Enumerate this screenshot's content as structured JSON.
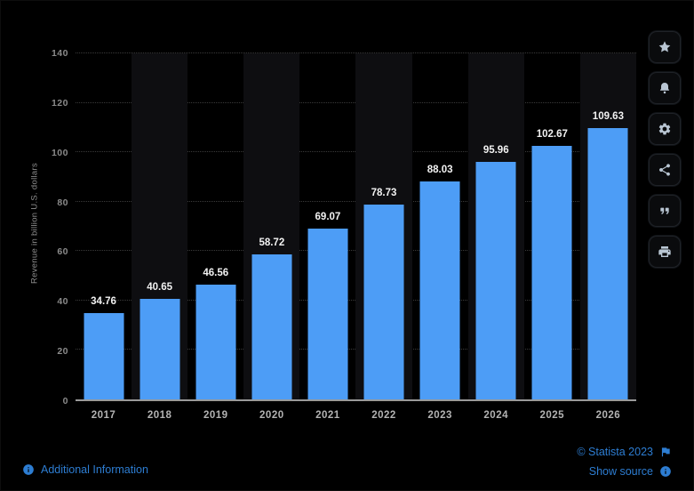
{
  "chart_data": {
    "type": "bar",
    "categories": [
      "2017",
      "2018",
      "2019",
      "2020",
      "2021",
      "2022",
      "2023",
      "2024",
      "2025",
      "2026"
    ],
    "values": [
      34.76,
      40.65,
      46.56,
      58.72,
      69.07,
      78.73,
      88.03,
      95.96,
      102.67,
      109.63
    ],
    "title": "",
    "xlabel": "",
    "ylabel": "Revenue in billion U.S. dollars",
    "ylim": [
      0,
      140
    ],
    "yticks": [
      0,
      20,
      40,
      60,
      80,
      100,
      120,
      140
    ],
    "grid": true,
    "legend": false,
    "bar_color": "#4d9df6",
    "value_label_color": "#f2f2f2",
    "background": "#000000"
  },
  "toolbar": {
    "items": [
      {
        "name": "favorite",
        "icon": "star-icon"
      },
      {
        "name": "notifications",
        "icon": "bell-icon"
      },
      {
        "name": "settings",
        "icon": "gear-icon"
      },
      {
        "name": "share",
        "icon": "share-icon"
      },
      {
        "name": "cite",
        "icon": "quote-icon"
      },
      {
        "name": "print",
        "icon": "printer-icon"
      }
    ]
  },
  "footer": {
    "additional_info_label": "Additional Information",
    "copyright_label": "© Statista 2023",
    "show_source_label": "Show source"
  },
  "colors": {
    "accent_blue": "#2d7dd2",
    "bar_blue": "#4d9df6",
    "axis_line": "#9a9a9a",
    "gridline": "#3a3a3a",
    "tick_text": "#8b8b8b",
    "x_label_text": "#b3b3b3"
  }
}
